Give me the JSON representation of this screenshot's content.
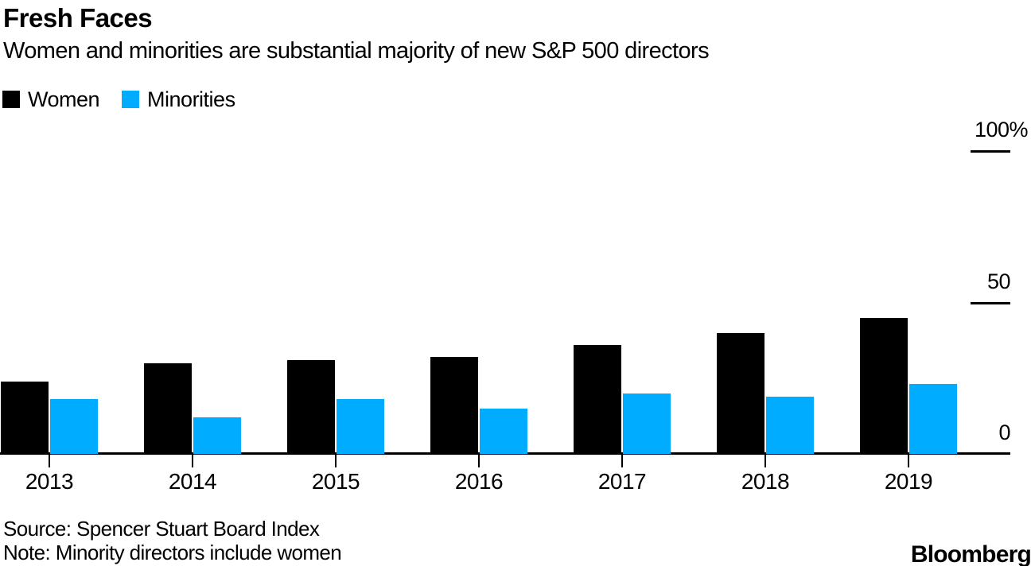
{
  "header": {
    "title": "Fresh Faces",
    "subtitle": "Women and minorities are substantial majority of new S&P 500 directors"
  },
  "legend": {
    "items": [
      {
        "id": "women",
        "label": "Women",
        "color": "#000000"
      },
      {
        "id": "minorities",
        "label": "Minorities",
        "color": "#00acff"
      }
    ]
  },
  "chart_data": {
    "type": "bar",
    "title": "Fresh Faces",
    "subtitle": "Women and minorities are substantial majority of new S&P 500 directors",
    "categories": [
      "2013",
      "2014",
      "2015",
      "2016",
      "2017",
      "2018",
      "2019"
    ],
    "series": [
      {
        "name": "Women",
        "color": "#000000",
        "values": [
          24,
          30,
          31,
          32,
          36,
          40,
          45
        ]
      },
      {
        "name": "Minorities",
        "color": "#00acff",
        "values": [
          18,
          12,
          18,
          15,
          20,
          19,
          23
        ]
      }
    ],
    "unit": "%",
    "ylim": [
      0,
      100
    ],
    "yticks": [
      {
        "value": 100,
        "label": "100%"
      },
      {
        "value": 50,
        "label": "50"
      },
      {
        "value": 0,
        "label": "0"
      }
    ],
    "grid": false,
    "legend_position": "top-left",
    "y_axis_side": "right"
  },
  "footer": {
    "source": "Source: Spencer Stuart Board Index",
    "note": "Note: Minority directors include women",
    "brand": "Bloomberg"
  }
}
